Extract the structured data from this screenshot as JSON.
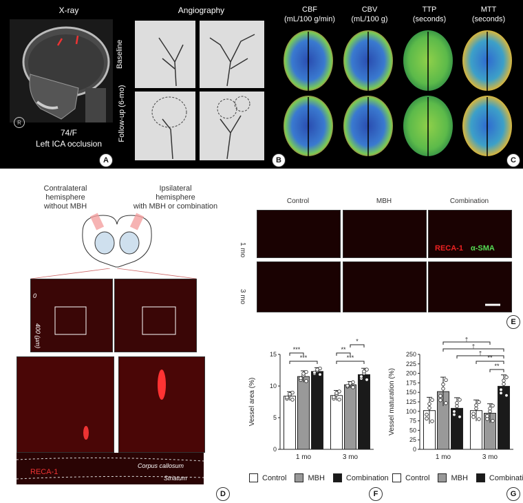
{
  "panelA": {
    "title": "X-ray",
    "caption_line1": "74/F",
    "caption_line2": "Left ICA occlusion",
    "side_marker": "R",
    "letter": "A"
  },
  "panelB": {
    "title": "Angiography",
    "row1": "Baseline",
    "row2": "Follow-up (6-mo)",
    "letter": "B"
  },
  "panelC": {
    "cols": [
      {
        "l1": "CBF",
        "l2": "(mL/100 g/min)"
      },
      {
        "l1": "CBV",
        "l2": "(mL/100 g)"
      },
      {
        "l1": "TTP",
        "l2": "(seconds)"
      },
      {
        "l1": "MTT",
        "l2": "(seconds)"
      }
    ],
    "letter": "C"
  },
  "panelD": {
    "left_l1": "Contralateral",
    "left_l2": "hemisphere",
    "left_l3": "without MBH",
    "right_l1": "Ipsilateral",
    "right_l2": "hemisphere",
    "right_l3": "with MBH or combination",
    "scale_top": "0",
    "scale_bottom": "400 (µm)",
    "stain": "RECA-1",
    "region1": "Corpus callosum",
    "region2": "Striatum",
    "letter": "D"
  },
  "panelE": {
    "cols": [
      "Control",
      "MBH",
      "Combination"
    ],
    "rows": [
      "1 mo",
      "3 mo"
    ],
    "stain1": "RECA-1",
    "stain2": "α-SMA",
    "letter": "E"
  },
  "legend": {
    "control": "Control",
    "mbh": "MBH",
    "combination": "Combination"
  },
  "colors": {
    "control": "#ffffff",
    "mbh": "#999999",
    "combination": "#1a1a1a"
  },
  "chart_data": [
    {
      "type": "bar",
      "panel": "F",
      "ylabel": "Vessel area (%)",
      "categories": [
        "1 mo",
        "3 mo"
      ],
      "ylim": [
        0,
        15
      ],
      "yticks": [
        0,
        5,
        10,
        15
      ],
      "series": [
        {
          "name": "Control",
          "values": [
            8.4,
            8.5
          ],
          "errors": [
            0.7,
            0.8
          ]
        },
        {
          "name": "MBH",
          "values": [
            11.5,
            10.2
          ],
          "errors": [
            0.9,
            0.5
          ]
        },
        {
          "name": "Combination",
          "values": [
            12.3,
            11.8
          ],
          "errors": [
            0.6,
            1.0
          ]
        }
      ],
      "significance": [
        {
          "group": 0,
          "from": 0,
          "to": 2,
          "label": "***"
        },
        {
          "group": 0,
          "from": 0,
          "to": 1,
          "label": "***"
        },
        {
          "group": 1,
          "from": 0,
          "to": 2,
          "label": "***"
        },
        {
          "group": 1,
          "from": 0,
          "to": 1,
          "label": "**"
        },
        {
          "group": 1,
          "from": 1,
          "to": 2,
          "label": "*"
        }
      ],
      "letter": "F"
    },
    {
      "type": "bar",
      "panel": "G",
      "ylabel": "Vessel maturation (%)",
      "categories": [
        "1 mo",
        "3 mo"
      ],
      "ylim": [
        0,
        250
      ],
      "yticks": [
        0,
        25,
        50,
        75,
        100,
        125,
        150,
        175,
        200,
        225,
        250
      ],
      "series": [
        {
          "name": "Control",
          "values": [
            102,
            102
          ],
          "errors": [
            35,
            28
          ]
        },
        {
          "name": "MBH",
          "values": [
            152,
            95
          ],
          "errors": [
            38,
            25
          ]
        },
        {
          "name": "Combination",
          "values": [
            108,
            166
          ],
          "errors": [
            28,
            30
          ]
        }
      ],
      "significance": [
        {
          "group": 1,
          "from": 1,
          "to": 2,
          "label": "**"
        },
        {
          "group": 1,
          "from": 0,
          "to": 2,
          "label": "**"
        }
      ],
      "cross_significance": [
        "†",
        "†",
        "†"
      ],
      "letter": "G"
    }
  ]
}
